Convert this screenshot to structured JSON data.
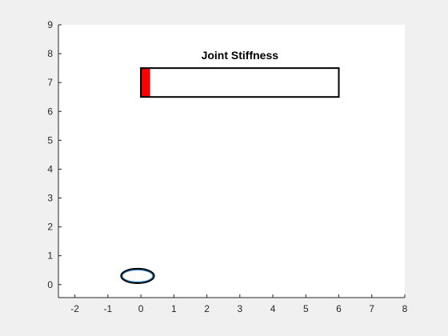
{
  "chart_data": {
    "type": "scatter",
    "title": "",
    "xlabel": "",
    "ylabel": "",
    "xlim": [
      -2.5,
      8
    ],
    "ylim": [
      -0.45,
      9
    ],
    "grid": false,
    "x_ticks": [
      "-2",
      "-1",
      "0",
      "1",
      "2",
      "3",
      "4",
      "5",
      "6",
      "7",
      "8"
    ],
    "y_ticks": [
      "0",
      "1",
      "2",
      "3",
      "4",
      "5",
      "6",
      "7",
      "8",
      "9"
    ],
    "stiffness_bar": {
      "label": "Joint Stiffness",
      "x_range": [
        0,
        6
      ],
      "y_range": [
        6.5,
        7.5
      ],
      "fill_value": 0.28,
      "fill_color": "#ff0000",
      "outline_color": "#000000"
    },
    "ellipse_shape": {
      "center": [
        -0.1,
        0.3
      ],
      "x_radius": 0.5,
      "y_radius": 0.25,
      "outline_color": "#000000",
      "inner_color": "#1f77b4"
    }
  }
}
